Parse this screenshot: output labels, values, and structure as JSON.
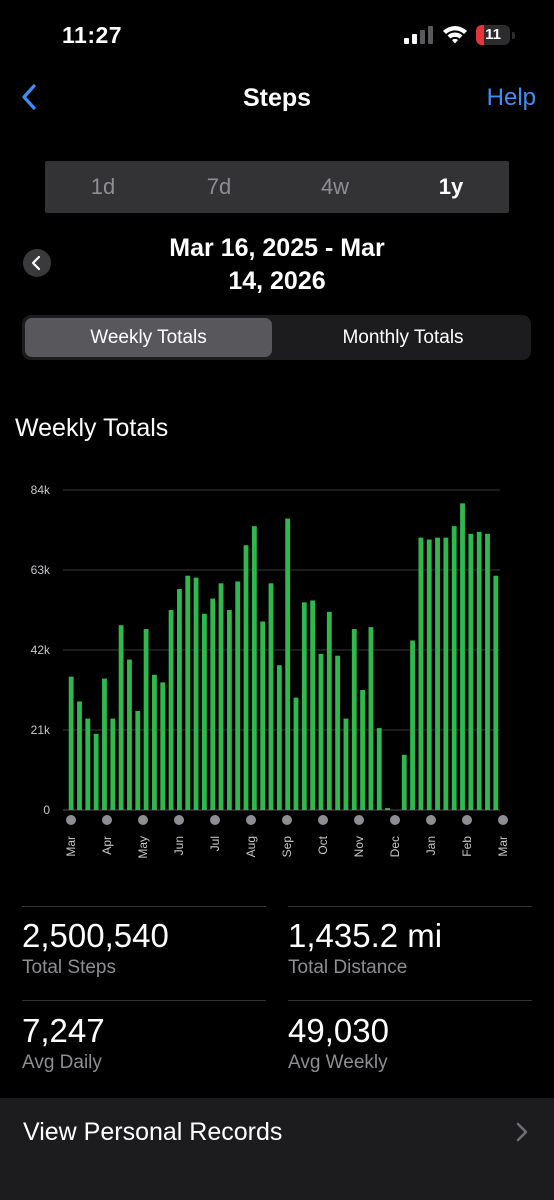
{
  "status_bar": {
    "time": "11:27",
    "battery_level": "11",
    "battery_color": "#e5333a"
  },
  "nav": {
    "title": "Steps",
    "help_label": "Help",
    "back_icon": "chevron-left-icon"
  },
  "range_options": [
    {
      "label": "1d",
      "active": false
    },
    {
      "label": "7d",
      "active": false
    },
    {
      "label": "4w",
      "active": false
    },
    {
      "label": "1y",
      "active": true
    }
  ],
  "date_range": {
    "line1": "Mar 16, 2025 - Mar",
    "line2": "14, 2026"
  },
  "totals_tabs": {
    "weekly": "Weekly Totals",
    "monthly": "Monthly Totals",
    "active": "weekly"
  },
  "chart_heading": "Weekly Totals",
  "chart_data": {
    "type": "bar",
    "title": "Weekly Totals",
    "bar_color": "#2fb84b",
    "ylim": [
      0,
      84000
    ],
    "yticks": [
      {
        "value": 0,
        "label": "0"
      },
      {
        "value": 21000,
        "label": "21k"
      },
      {
        "value": 42000,
        "label": "42k"
      },
      {
        "value": 63000,
        "label": "63k"
      },
      {
        "value": 84000,
        "label": "84k"
      }
    ],
    "grid": true,
    "values": [
      35000,
      28500,
      24000,
      20000,
      34500,
      24000,
      48500,
      39500,
      26000,
      47500,
      35500,
      33500,
      52500,
      58000,
      61500,
      61000,
      51500,
      55500,
      59500,
      52500,
      60000,
      69500,
      74500,
      49500,
      59500,
      38000,
      76500,
      29500,
      54500,
      55000,
      41000,
      52000,
      40500,
      24000,
      47500,
      31500,
      48000,
      21500,
      500,
      0,
      14500,
      44500,
      71500,
      71000,
      71500,
      71500,
      74500,
      80500,
      72500,
      73000,
      72500,
      61500
    ],
    "x_tick_labels": [
      "Mar",
      "Apr",
      "May",
      "Jun",
      "Jul",
      "Aug",
      "Sep",
      "Oct",
      "Nov",
      "Dec",
      "Jan",
      "Feb",
      "Mar"
    ]
  },
  "stats": [
    {
      "value": "2,500,540",
      "label": "Total Steps"
    },
    {
      "value": "1,435.2 mi",
      "label": "Total Distance"
    },
    {
      "value": "7,247",
      "label": "Avg Daily"
    },
    {
      "value": "49,030",
      "label": "Avg Weekly"
    }
  ],
  "records": {
    "label": "View Personal Records",
    "icon": "chevron-right-icon"
  }
}
